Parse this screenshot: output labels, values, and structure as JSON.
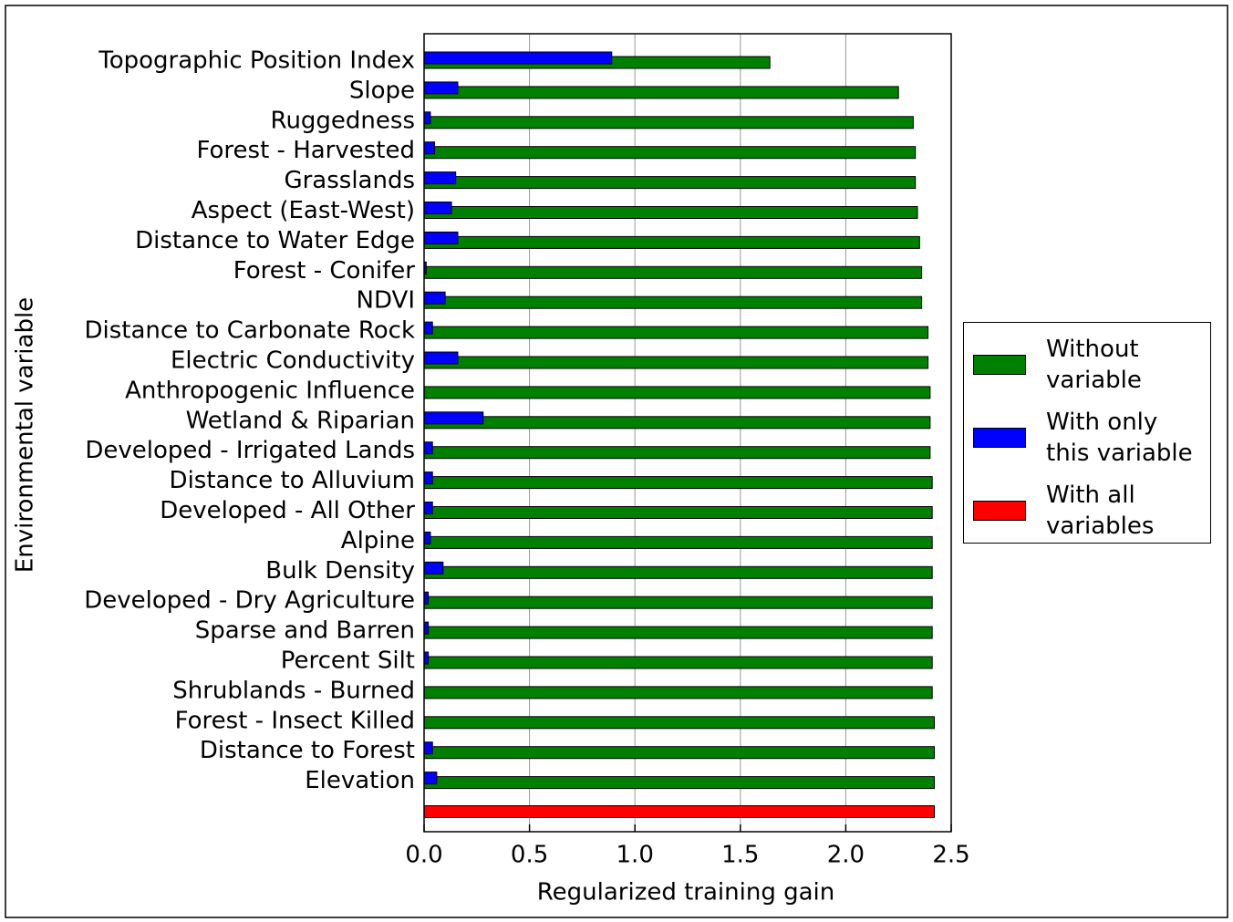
{
  "chart_data": {
    "type": "barh",
    "xlabel": "Regularized training gain",
    "ylabel": "Environmental variable",
    "categories": [
      "Topographic Position Index",
      "Slope",
      "Ruggedness",
      "Forest - Harvested",
      "Grasslands",
      "Aspect (East-West)",
      "Distance to Water Edge",
      "Forest - Conifer",
      "NDVI",
      "Distance to Carbonate Rock",
      "Electric Conductivity",
      "Anthropogenic Influence",
      "Wetland & Riparian",
      "Developed - Irrigated Lands",
      "Distance to Alluvium",
      "Developed - All Other",
      "Alpine",
      "Bulk Density",
      "Developed - Dry Agriculture",
      "Sparse and Barren",
      "Percent Silt",
      "Shrublands - Burned",
      "Forest - Insect Killed",
      "Distance to Forest",
      "Elevation",
      null
    ],
    "series": [
      {
        "name": "Without\nvariable",
        "color": "#008000",
        "values": [
          1.64,
          2.25,
          2.32,
          2.33,
          2.33,
          2.34,
          2.35,
          2.36,
          2.36,
          2.39,
          2.39,
          2.4,
          2.4,
          2.4,
          2.41,
          2.41,
          2.41,
          2.41,
          2.41,
          2.41,
          2.41,
          2.41,
          2.42,
          2.42,
          2.42,
          null
        ]
      },
      {
        "name": "With only\nthis variable",
        "color": "#0000ff",
        "values": [
          0.89,
          0.16,
          0.03,
          0.05,
          0.15,
          0.13,
          0.16,
          0.01,
          0.1,
          0.04,
          0.16,
          0.0,
          0.28,
          0.04,
          0.04,
          0.04,
          0.03,
          0.09,
          0.02,
          0.02,
          0.02,
          0.0,
          0.0,
          0.04,
          0.06,
          null
        ]
      },
      {
        "name": "With all\nvariables",
        "color": "#ff0000",
        "values": [
          null,
          null,
          null,
          null,
          null,
          null,
          null,
          null,
          null,
          null,
          null,
          null,
          null,
          null,
          null,
          null,
          null,
          null,
          null,
          null,
          null,
          null,
          null,
          null,
          null,
          2.42
        ]
      }
    ],
    "xlim": [
      0,
      2.5
    ],
    "xticks": [
      {
        "value": 0,
        "label": "0.0"
      },
      0.5,
      {
        "value": 1,
        "label": "1.0"
      },
      1.5,
      {
        "value": 2,
        "label": "2.0"
      },
      2.5
    ],
    "grid": true,
    "legend": "right"
  }
}
